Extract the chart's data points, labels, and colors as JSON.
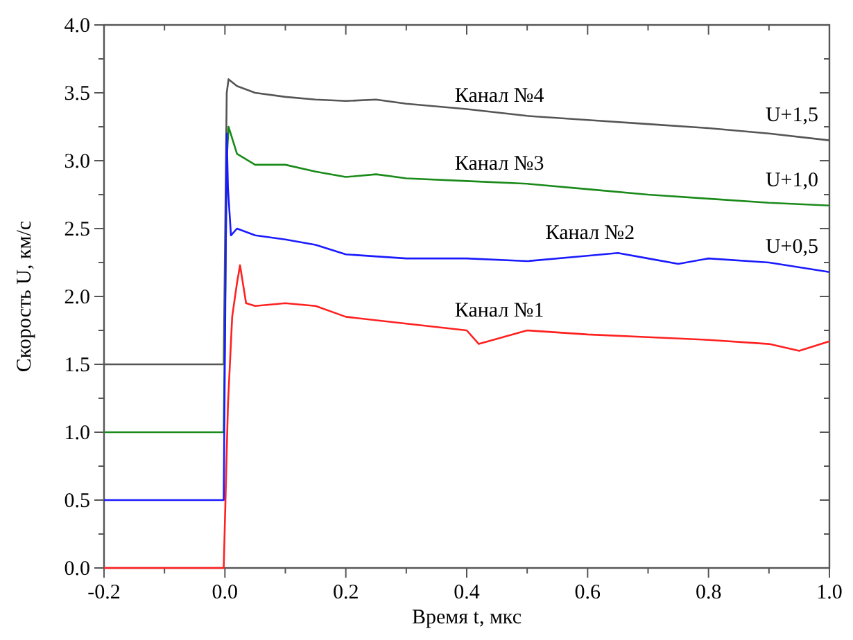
{
  "chart_data": {
    "type": "line",
    "xlabel": "Время t, мкс",
    "ylabel": "Скорость U, км/с",
    "xlim": [
      -0.2,
      1.0
    ],
    "ylim": [
      0,
      4.0
    ],
    "xticks": [
      {
        "value": -0.2,
        "label": "-0.2"
      },
      {
        "value": -0.1,
        "label": null
      },
      {
        "value": 0,
        "label": "0.0"
      },
      {
        "value": 0.1,
        "label": null
      },
      {
        "value": 0.2,
        "label": "0.2"
      },
      {
        "value": 0.3,
        "label": null
      },
      {
        "value": 0.4,
        "label": "0.4"
      },
      {
        "value": 0.5,
        "label": null
      },
      {
        "value": 0.6,
        "label": "0.6"
      },
      {
        "value": 0.7,
        "label": null
      },
      {
        "value": 0.8,
        "label": "0.8"
      },
      {
        "value": 0.9,
        "label": null
      },
      {
        "value": 1.0,
        "label": "1.0"
      }
    ],
    "yticks": [
      {
        "value": 0,
        "label": "0.0"
      },
      {
        "value": 0.25,
        "label": null
      },
      {
        "value": 0.5,
        "label": "0.5"
      },
      {
        "value": 0.75,
        "label": null
      },
      {
        "value": 1.0,
        "label": "1.0"
      },
      {
        "value": 1.25,
        "label": null
      },
      {
        "value": 1.5,
        "label": "1.5"
      },
      {
        "value": 1.75,
        "label": null
      },
      {
        "value": 2.0,
        "label": "2.0"
      },
      {
        "value": 2.25,
        "label": null
      },
      {
        "value": 2.5,
        "label": "2.5"
      },
      {
        "value": 2.75,
        "label": null
      },
      {
        "value": 3.0,
        "label": "3.0"
      },
      {
        "value": 3.25,
        "label": null
      },
      {
        "value": 3.5,
        "label": "3.5"
      },
      {
        "value": 3.75,
        "label": null
      },
      {
        "value": 4.0,
        "label": "4.0"
      }
    ],
    "grid": false,
    "marker": "none",
    "line_style": "solid",
    "annotations": [
      "U+1,5",
      "U+1,0",
      "U+0,5"
    ],
    "series": [
      {
        "name": "Канал №4",
        "color": "#555555",
        "x": [
          -0.2,
          -0.1,
          -0.002,
          0.003,
          0.006,
          0.02,
          0.05,
          0.1,
          0.15,
          0.2,
          0.25,
          0.3,
          0.4,
          0.5,
          0.6,
          0.7,
          0.8,
          0.9,
          1.0
        ],
        "values": [
          1.5,
          1.5,
          1.5,
          3.5,
          3.6,
          3.55,
          3.5,
          3.47,
          3.45,
          3.44,
          3.45,
          3.42,
          3.38,
          3.33,
          3.3,
          3.27,
          3.24,
          3.2,
          3.15
        ]
      },
      {
        "name": "Канал №3",
        "color": "#1a8a1a",
        "x": [
          -0.2,
          -0.1,
          -0.002,
          0.003,
          0.006,
          0.02,
          0.05,
          0.1,
          0.15,
          0.2,
          0.25,
          0.3,
          0.4,
          0.5,
          0.6,
          0.7,
          0.8,
          0.9,
          1.0
        ],
        "values": [
          1.0,
          1.0,
          1.0,
          3.0,
          3.25,
          3.05,
          2.97,
          2.97,
          2.92,
          2.88,
          2.9,
          2.87,
          2.85,
          2.83,
          2.79,
          2.75,
          2.72,
          2.69,
          2.67
        ]
      },
      {
        "name": "Канал №2",
        "color": "#1a1aff",
        "x": [
          -0.2,
          -0.1,
          -0.002,
          0.003,
          0.005,
          0.01,
          0.02,
          0.05,
          0.1,
          0.15,
          0.2,
          0.3,
          0.4,
          0.5,
          0.6,
          0.65,
          0.7,
          0.75,
          0.8,
          0.9,
          1.0
        ],
        "values": [
          0.5,
          0.5,
          0.5,
          3.2,
          2.8,
          2.45,
          2.5,
          2.45,
          2.42,
          2.38,
          2.31,
          2.28,
          2.28,
          2.26,
          2.3,
          2.32,
          2.28,
          2.24,
          2.28,
          2.25,
          2.18
        ]
      },
      {
        "name": "Канал №1",
        "color": "#ff2020",
        "x": [
          -0.2,
          -0.1,
          -0.002,
          0.005,
          0.012,
          0.02,
          0.025,
          0.035,
          0.05,
          0.1,
          0.15,
          0.2,
          0.3,
          0.4,
          0.42,
          0.5,
          0.6,
          0.7,
          0.8,
          0.9,
          0.95,
          1.0
        ],
        "values": [
          0.0,
          0.0,
          0.0,
          1.2,
          1.85,
          2.1,
          2.23,
          1.95,
          1.93,
          1.95,
          1.93,
          1.85,
          1.8,
          1.75,
          1.65,
          1.75,
          1.72,
          1.7,
          1.68,
          1.65,
          1.6,
          1.67
        ]
      }
    ]
  }
}
